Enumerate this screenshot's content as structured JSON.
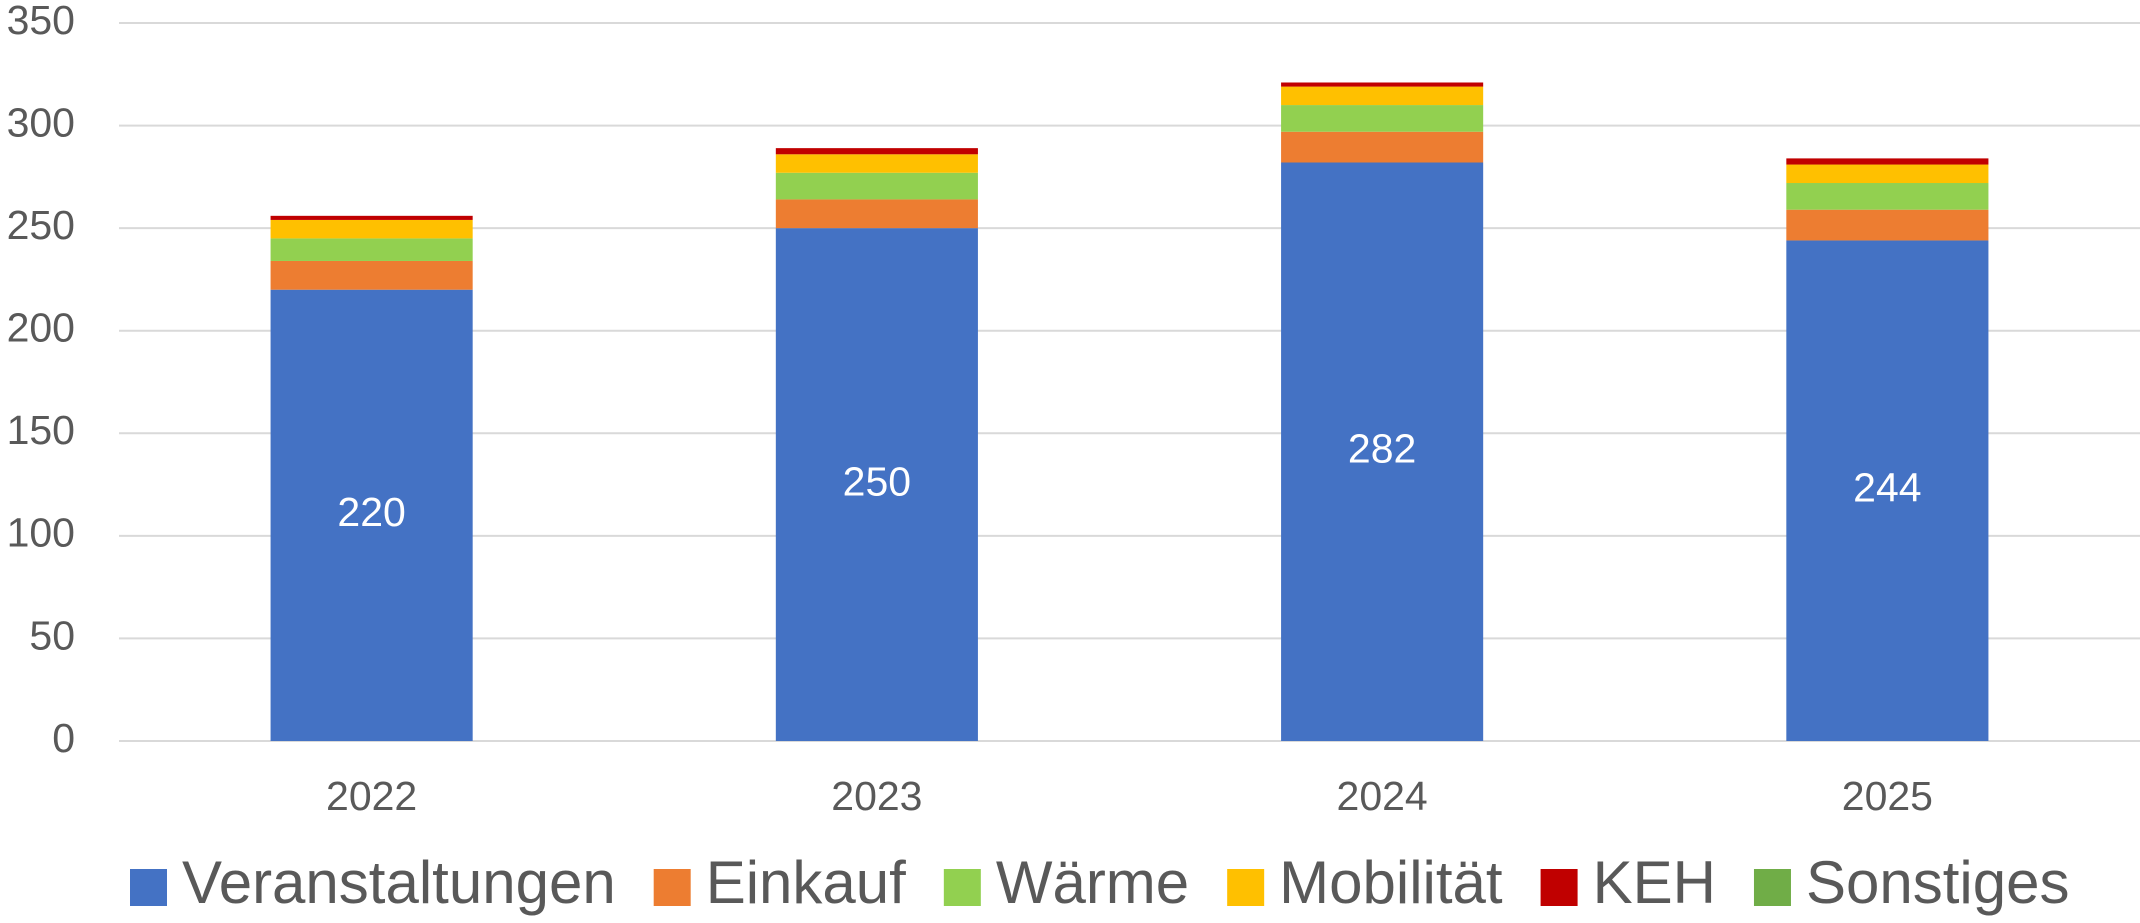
{
  "chart_data": {
    "type": "stacked_bar",
    "categories": [
      "2022",
      "2023",
      "2024",
      "2025"
    ],
    "series": [
      {
        "name": "Veranstaltungen",
        "color": "#4472c4",
        "values": [
          220,
          250,
          282,
          244
        ],
        "data_labels": true
      },
      {
        "name": "Einkauf",
        "color": "#ed7d31",
        "values": [
          14,
          14,
          15,
          15
        ]
      },
      {
        "name": "Wärme",
        "color": "#92d050",
        "values": [
          11,
          13,
          13,
          13
        ]
      },
      {
        "name": "Mobilität",
        "color": "#ffc000",
        "values": [
          9,
          9,
          9,
          9
        ]
      },
      {
        "name": "KEH",
        "color": "#c00000",
        "values": [
          2,
          3,
          2,
          3
        ]
      },
      {
        "name": "Sonstiges",
        "color": "#70ad47",
        "values": [
          0,
          0,
          0,
          0
        ]
      }
    ],
    "ylim": [
      0,
      350
    ],
    "yticks": [
      0,
      50,
      100,
      150,
      200,
      250,
      300,
      350
    ],
    "grid": true,
    "legend": "bottom"
  }
}
